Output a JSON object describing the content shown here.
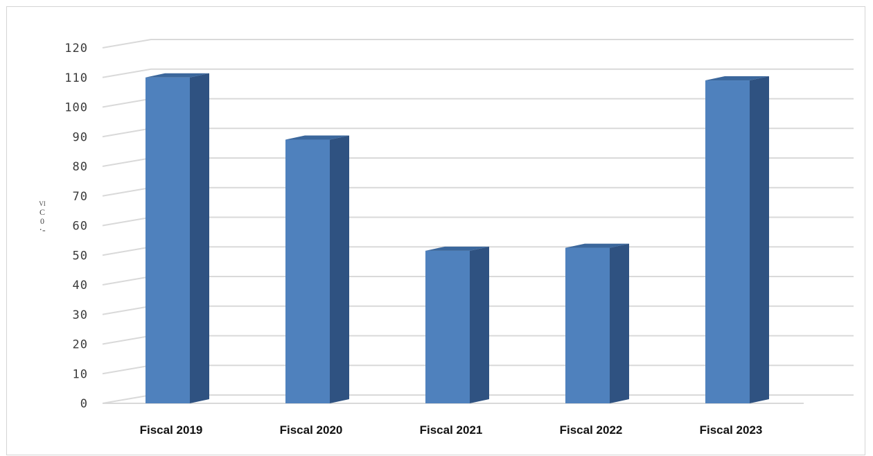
{
  "chart_data": {
    "type": "bar",
    "categories": [
      "Fiscal 2019",
      "Fiscal 2020",
      "Fiscal 2021",
      "Fiscal 2022",
      "Fiscal 2023"
    ],
    "values": [
      110,
      89,
      51.5,
      52.5,
      109
    ],
    "ylim": [
      0,
      120
    ],
    "yticks": [
      0,
      10,
      20,
      30,
      40,
      50,
      60,
      70,
      80,
      90,
      100,
      110,
      120
    ],
    "ylabel": "VI C 0 ·-",
    "grid": true,
    "style": "3d-column",
    "colors": {
      "bar_front": "#4f81bd",
      "bar_side": "#2f5281",
      "bar_top": "#3b679c",
      "grid": "#d9d9d9"
    }
  }
}
